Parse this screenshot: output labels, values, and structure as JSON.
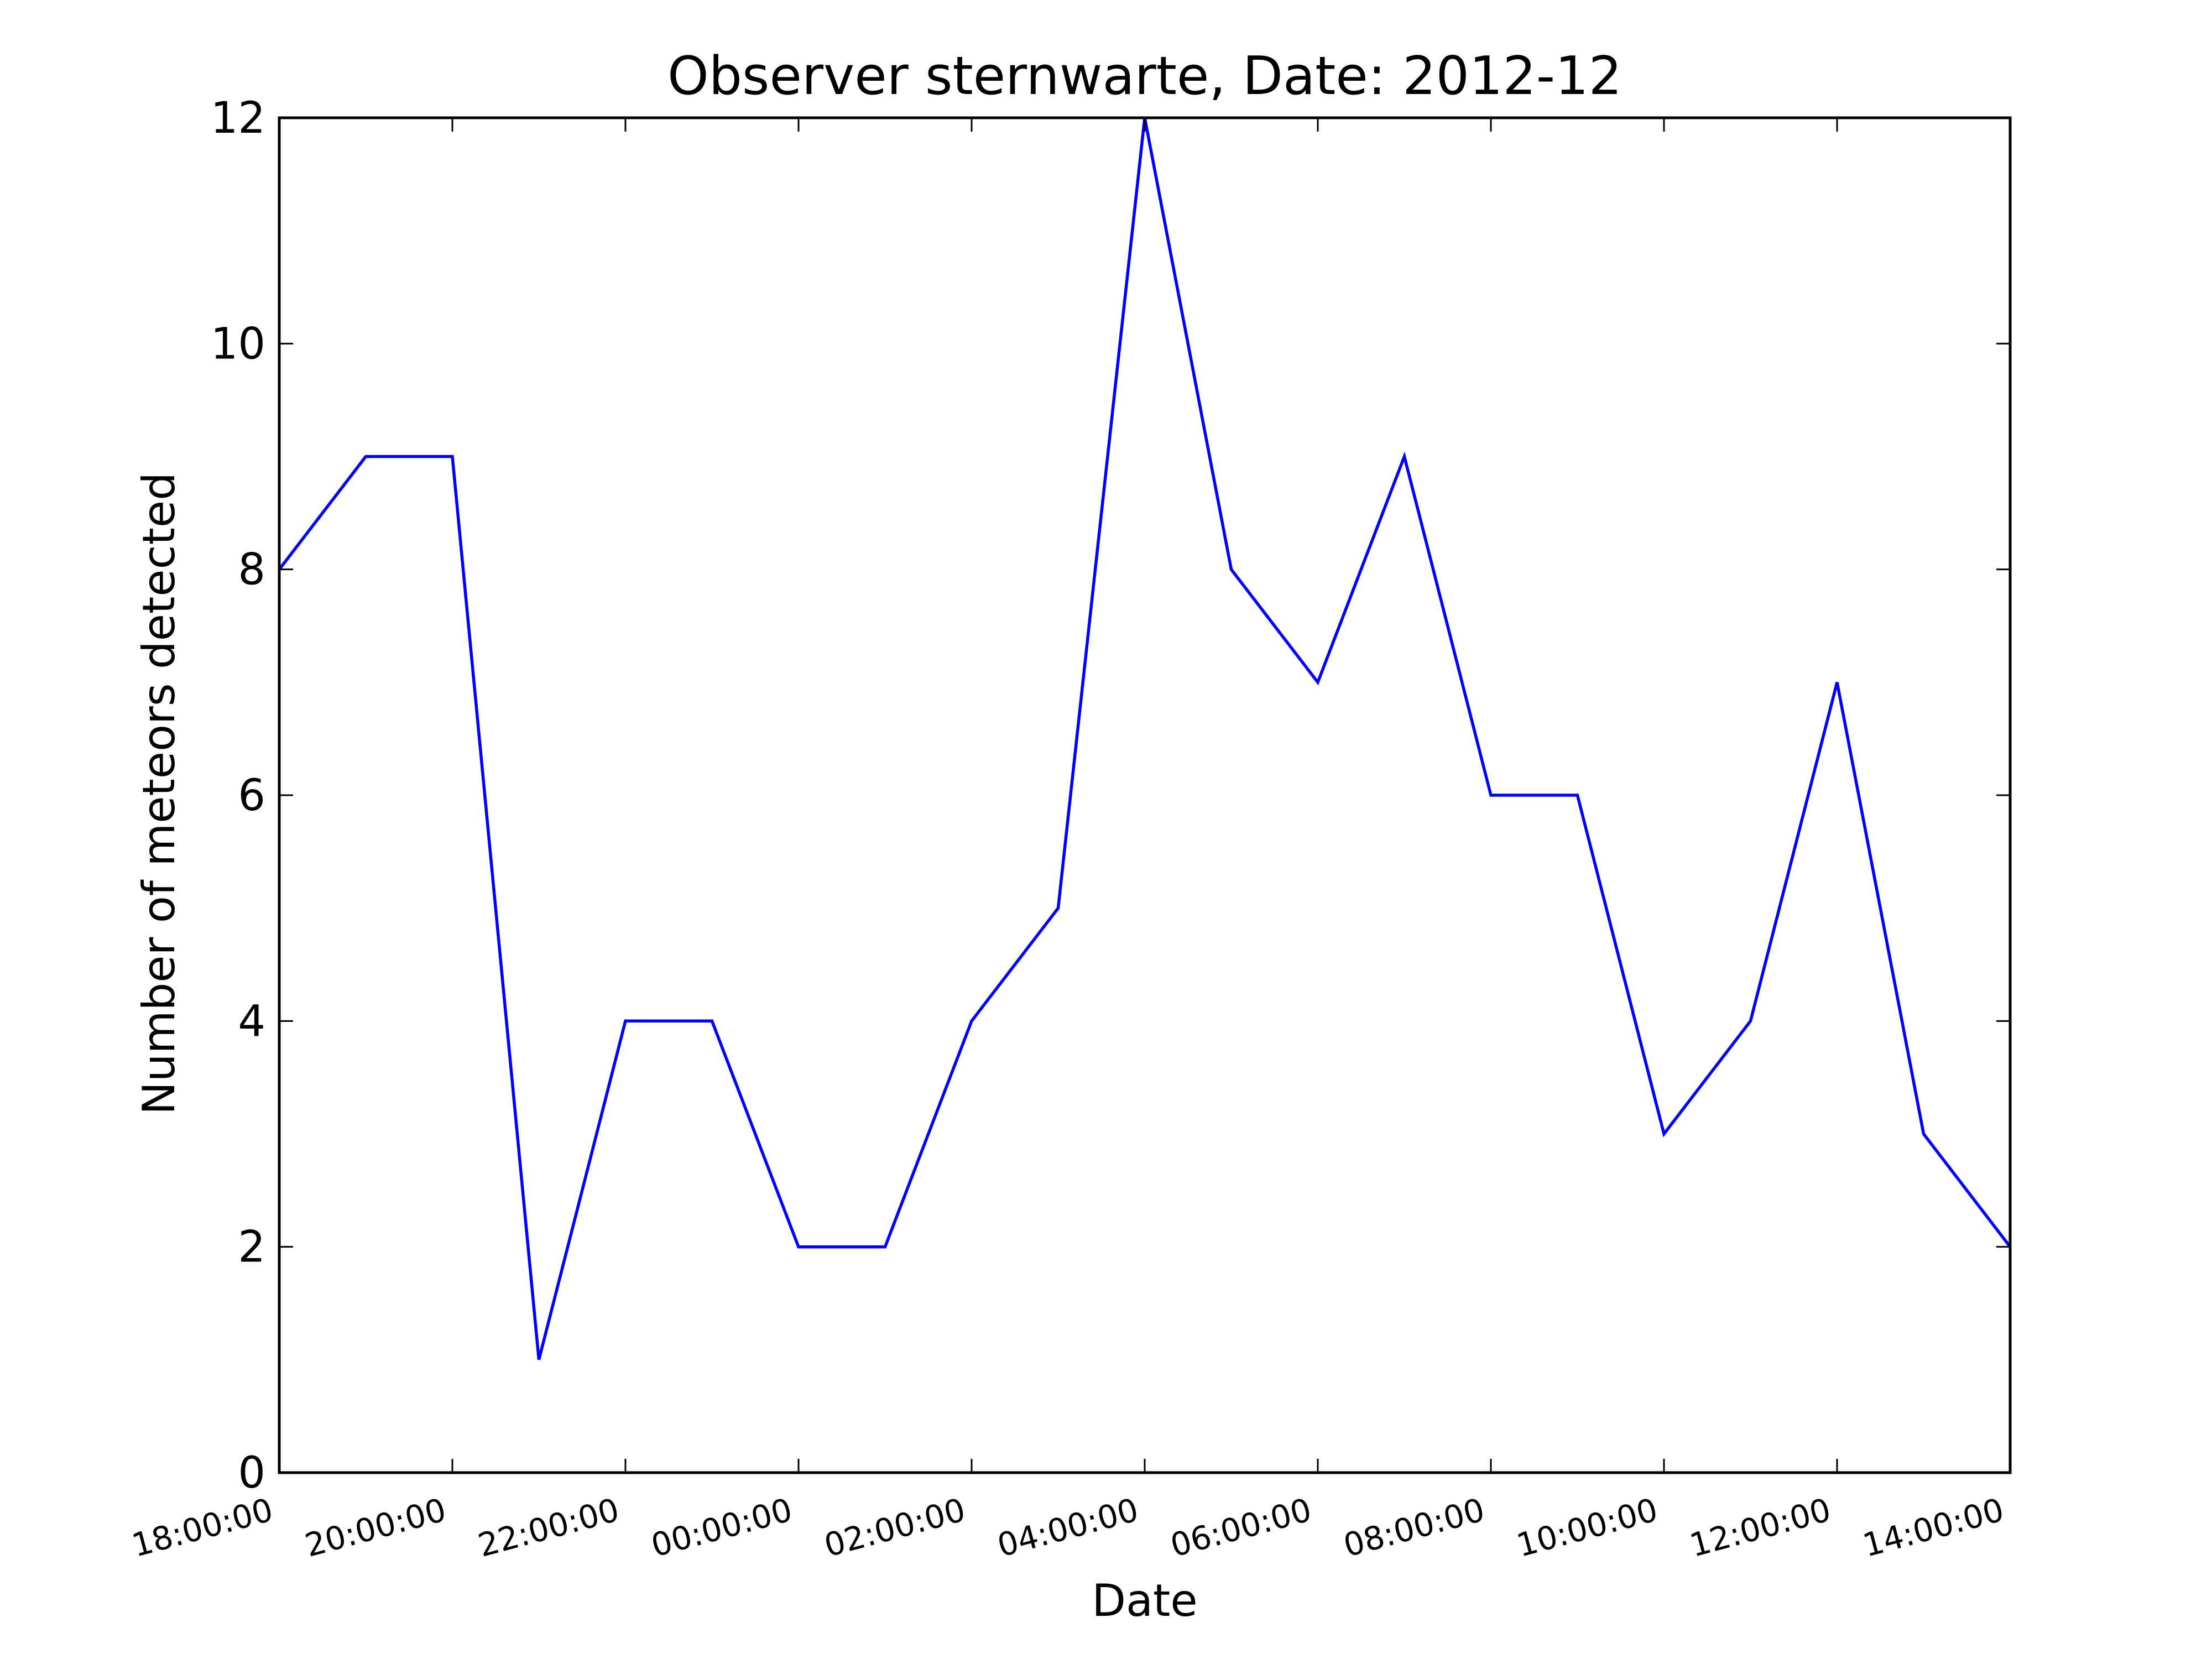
{
  "chart_data": {
    "type": "line",
    "title": "Observer sternwarte, Date: 2012-12",
    "xlabel": "Date",
    "ylabel": "Number of meteors detected",
    "x": [
      "18:00:00",
      "19:00:00",
      "20:00:00",
      "21:00:00",
      "22:00:00",
      "23:00:00",
      "00:00:00",
      "01:00:00",
      "02:00:00",
      "03:00:00",
      "04:00:00",
      "05:00:00",
      "06:00:00",
      "07:00:00",
      "08:00:00",
      "09:00:00",
      "10:00:00",
      "11:00:00",
      "12:00:00",
      "13:00:00",
      "14:00:00"
    ],
    "series": [
      {
        "values": [
          8,
          9,
          9,
          1,
          4,
          4,
          2,
          2,
          4,
          5,
          12,
          8,
          7,
          9,
          6,
          6,
          3,
          4,
          7,
          3,
          2
        ],
        "color": "#0000ff"
      }
    ],
    "xticks": [
      "18:00:00",
      "20:00:00",
      "22:00:00",
      "00:00:00",
      "02:00:00",
      "04:00:00",
      "06:00:00",
      "08:00:00",
      "10:00:00",
      "12:00:00",
      "14:00:00"
    ],
    "yticks": [
      "0",
      "2",
      "4",
      "6",
      "8",
      "10",
      "12"
    ],
    "ylim": [
      0,
      12
    ],
    "grid": false,
    "legend": false
  }
}
